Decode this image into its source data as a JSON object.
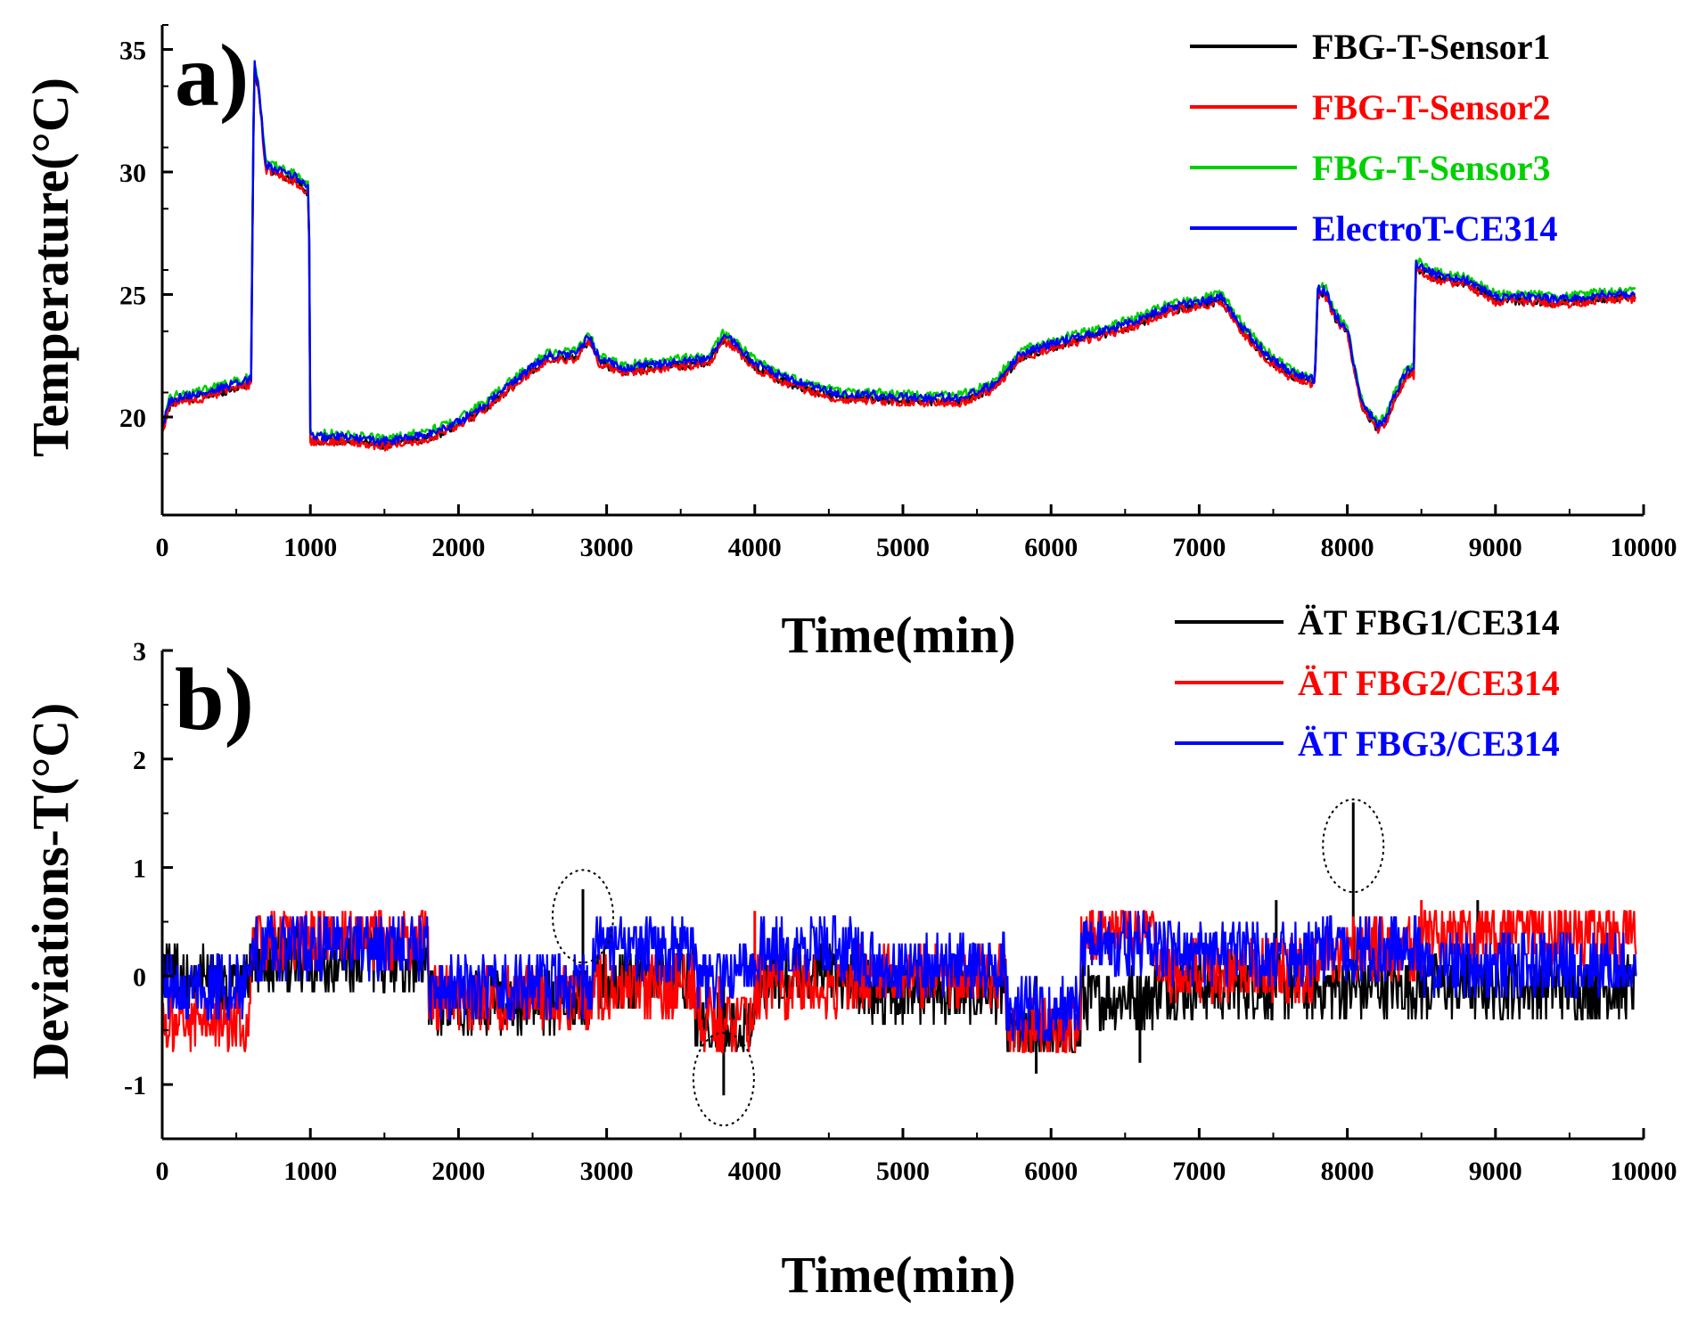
{
  "colors": {
    "sensor1": "#000000",
    "sensor2": "#ff0000",
    "sensor3": "#00d000",
    "ce314": "#0000ff",
    "dev1": "#000000",
    "dev2": "#ff0000",
    "dev3": "#0000ff",
    "axis": "#000000"
  },
  "chart_data": [
    {
      "id": "a",
      "panel_label": "a)",
      "type": "line",
      "xlabel": "Time(min)",
      "ylabel": "Temperature(°C)",
      "xlim": [
        0,
        10000
      ],
      "ylim": [
        16,
        36
      ],
      "xticks": [
        0,
        1000,
        2000,
        3000,
        4000,
        5000,
        6000,
        7000,
        8000,
        9000,
        10000
      ],
      "xtick_labels": [
        "0",
        "1000",
        "2000",
        "3000",
        "4000",
        "5000",
        "6000",
        "7000",
        "8000",
        "9000",
        "10000"
      ],
      "yticks": [
        20,
        25,
        30,
        35
      ],
      "ytick_labels": [
        "20",
        "25",
        "30",
        "35"
      ],
      "legend_position": "top-right",
      "x": [
        0,
        50,
        100,
        300,
        580,
        600,
        620,
        650,
        700,
        900,
        990,
        1000,
        1010,
        1200,
        1500,
        1800,
        2000,
        2200,
        2400,
        2600,
        2800,
        2880,
        2950,
        3100,
        3400,
        3700,
        3780,
        3850,
        4000,
        4200,
        4400,
        4600,
        4800,
        5000,
        5200,
        5400,
        5600,
        5800,
        6000,
        6200,
        6400,
        6600,
        6800,
        7000,
        7150,
        7300,
        7450,
        7600,
        7750,
        7780,
        7800,
        7850,
        7900,
        7950,
        8000,
        8050,
        8100,
        8200,
        8250,
        8300,
        8400,
        8450,
        8460,
        8480,
        8600,
        8800,
        9000,
        9200,
        9500,
        9700,
        9950
      ],
      "base": [
        19.6,
        20.6,
        20.8,
        21.0,
        21.5,
        21.6,
        34.5,
        33.5,
        30.3,
        29.8,
        29.3,
        19.3,
        19.2,
        19.2,
        19.0,
        19.3,
        19.8,
        20.6,
        21.6,
        22.5,
        22.6,
        23.3,
        22.4,
        22.0,
        22.2,
        22.4,
        23.3,
        23.1,
        22.2,
        21.6,
        21.2,
        20.9,
        20.9,
        20.8,
        20.8,
        20.8,
        21.3,
        22.6,
        23.0,
        23.3,
        23.6,
        24.0,
        24.5,
        24.7,
        24.9,
        23.6,
        22.6,
        21.9,
        21.6,
        21.4,
        25.2,
        25.2,
        24.4,
        23.9,
        23.6,
        21.9,
        20.6,
        19.7,
        19.8,
        20.6,
        21.9,
        21.9,
        26.3,
        26.2,
        25.8,
        25.6,
        24.9,
        24.9,
        24.8,
        25.0,
        25.0
      ],
      "series": [
        {
          "name": "FBG-T-Sensor1",
          "offset": -0.15
        },
        {
          "name": "FBG-T-Sensor2",
          "offset": -0.2
        },
        {
          "name": "FBG-T-Sensor3",
          "offset": 0.12
        },
        {
          "name": "ElectroT-CE314",
          "offset": 0.0
        }
      ]
    },
    {
      "id": "b",
      "panel_label": "b)",
      "type": "line",
      "xlabel": "Time(min)",
      "ylabel": "Deviations-T(°C)",
      "xlim": [
        0,
        10000
      ],
      "ylim": [
        -1.5,
        3
      ],
      "xticks": [
        0,
        1000,
        2000,
        3000,
        4000,
        5000,
        6000,
        7000,
        8000,
        9000,
        10000
      ],
      "xtick_labels": [
        "0",
        "1000",
        "2000",
        "3000",
        "4000",
        "5000",
        "6000",
        "7000",
        "8000",
        "9000",
        "10000"
      ],
      "yticks": [
        -1,
        0,
        1,
        2,
        3
      ],
      "ytick_labels": [
        "-1",
        "0",
        "1",
        "2",
        "3"
      ],
      "legend_position": "top-right",
      "series": [
        {
          "name": "ÄT FBG1/CE314",
          "segments": [
            [
              0,
              600,
              0.0
            ],
            [
              600,
              1800,
              0.15
            ],
            [
              1800,
              2900,
              -0.25
            ],
            [
              2900,
              3600,
              0.0
            ],
            [
              3600,
              4000,
              -0.45
            ],
            [
              4000,
              4700,
              0.0
            ],
            [
              4700,
              5700,
              -0.15
            ],
            [
              5700,
              6200,
              -0.55
            ],
            [
              6200,
              6700,
              -0.2
            ],
            [
              6700,
              7800,
              -0.1
            ],
            [
              7800,
              8500,
              -0.1
            ],
            [
              8500,
              9950,
              -0.1
            ]
          ],
          "spikes": [
            [
              2840,
              0.8
            ],
            [
              3790,
              -1.1
            ],
            [
              8040,
              1.6
            ],
            [
              7520,
              0.7
            ],
            [
              8880,
              0.7
            ],
            [
              6600,
              -0.8
            ],
            [
              5900,
              -0.9
            ]
          ]
        },
        {
          "name": "ÄT FBG2/CE314",
          "segments": [
            [
              0,
              600,
              -0.45
            ],
            [
              600,
              1800,
              0.35
            ],
            [
              1800,
              2900,
              -0.2
            ],
            [
              2900,
              3600,
              -0.1
            ],
            [
              3600,
              4000,
              -0.4
            ],
            [
              4000,
              4700,
              -0.1
            ],
            [
              4700,
              5700,
              0.0
            ],
            [
              5700,
              6200,
              -0.5
            ],
            [
              6200,
              6700,
              0.45
            ],
            [
              6700,
              7800,
              0.05
            ],
            [
              7800,
              8500,
              0.25
            ],
            [
              8500,
              9950,
              0.4
            ]
          ],
          "spikes": [
            [
              3760,
              -0.7
            ],
            [
              8500,
              0.7
            ],
            [
              4000,
              0.6
            ]
          ]
        },
        {
          "name": "ÄT FBG3/CE314",
          "segments": [
            [
              0,
              600,
              -0.1
            ],
            [
              600,
              1800,
              0.25
            ],
            [
              1800,
              2900,
              -0.1
            ],
            [
              2900,
              3600,
              0.25
            ],
            [
              3600,
              4000,
              0.0
            ],
            [
              4000,
              4700,
              0.25
            ],
            [
              4700,
              5700,
              0.1
            ],
            [
              5700,
              6200,
              -0.3
            ],
            [
              6200,
              6700,
              0.3
            ],
            [
              6700,
              7800,
              0.2
            ],
            [
              7800,
              8500,
              0.25
            ],
            [
              8500,
              9950,
              0.1
            ]
          ],
          "spikes": []
        }
      ],
      "annotations": [
        {
          "type": "ellipse",
          "x": 2840,
          "y": 0.55
        },
        {
          "type": "ellipse",
          "x": 3790,
          "y": -0.95
        },
        {
          "type": "ellipse",
          "x": 8040,
          "y": 1.2
        }
      ]
    }
  ]
}
